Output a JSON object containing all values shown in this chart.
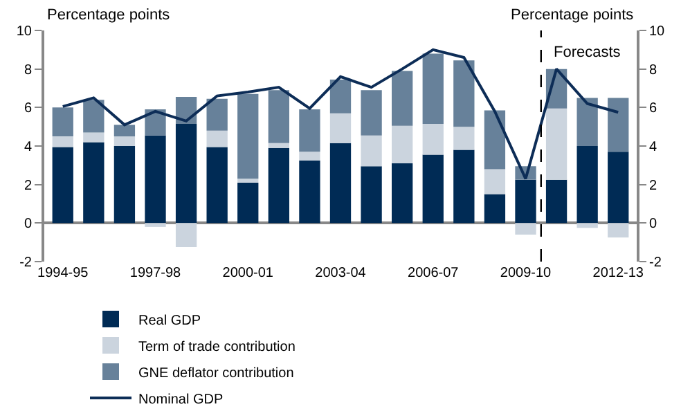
{
  "chart_data": {
    "type": "bar",
    "stacked": true,
    "categories": [
      "1994-95",
      null,
      null,
      "1997-98",
      null,
      null,
      "2000-01",
      null,
      null,
      "2003-04",
      null,
      null,
      "2006-07",
      null,
      null,
      "2009-10",
      null,
      null,
      "2012-13"
    ],
    "series": [
      {
        "name": "Real GDP",
        "color": "#002b55",
        "values": [
          3.95,
          4.2,
          4.0,
          4.55,
          5.15,
          3.95,
          2.1,
          3.9,
          3.25,
          4.15,
          2.95,
          3.1,
          3.55,
          3.8,
          1.5,
          2.25,
          2.25,
          4.0,
          3.7
        ]
      },
      {
        "name": "Term of trade contribution",
        "color": "#cbd4de",
        "values": [
          0.55,
          0.5,
          0.5,
          -0.2,
          -1.25,
          0.85,
          0.2,
          0.25,
          0.45,
          1.55,
          1.6,
          1.95,
          1.6,
          1.2,
          1.3,
          -0.6,
          3.7,
          -0.25,
          -0.75
        ]
      },
      {
        "name": "GNE deflator contribution",
        "color": "#67819a",
        "values": [
          1.5,
          1.7,
          0.6,
          1.35,
          1.4,
          1.65,
          4.4,
          2.75,
          2.2,
          1.75,
          2.35,
          2.85,
          3.65,
          3.45,
          3.05,
          0.7,
          2.05,
          2.5,
          2.8
        ]
      },
      {
        "name": "Nominal GDP",
        "type": "line",
        "axis": "y2",
        "color": "#0d2d57",
        "marker": "none",
        "values": [
          6.05,
          6.5,
          5.1,
          5.8,
          5.3,
          6.6,
          6.8,
          7.05,
          5.95,
          7.6,
          7.05,
          8.0,
          9.0,
          8.6,
          5.8,
          2.3,
          8.0,
          6.2,
          5.75
        ]
      }
    ],
    "ylabel": "Percentage points",
    "y2label": "Percentage points",
    "ylim": [
      -2,
      10
    ],
    "yticks": [
      -2,
      0,
      2,
      4,
      6,
      8,
      10
    ],
    "y2lim": [
      -2,
      10
    ],
    "y2ticks": [
      -2,
      0,
      2,
      4,
      6,
      8,
      10
    ],
    "annotations": [
      "Forecasts"
    ],
    "legend": "bottom"
  }
}
